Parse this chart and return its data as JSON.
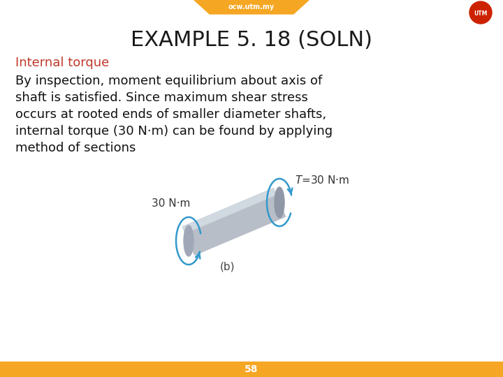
{
  "title": "EXAMPLE 5. 18 (SOLN)",
  "subtitle": "Internal torque",
  "body_lines": [
    "By inspection, moment equilibrium about axis of",
    "shaft is satisfied. Since maximum shear stress",
    "occurs at rooted ends of smaller diameter shafts,",
    "internal torque (30 N·m) can be found by applying",
    "method of sections"
  ],
  "label_left": "30 N·m",
  "label_right": "T=30 N·m",
  "caption": "(b)",
  "page_number": "58",
  "top_banner_color": "#F5A623",
  "top_banner_text": "ocw.utm.my",
  "bottom_bar_color": "#F5A623",
  "title_color": "#1a1a1a",
  "subtitle_color": "#C0392B",
  "body_color": "#111111",
  "background_color": "#FFFFFF",
  "shaft_body_color": "#B8BEC8",
  "shaft_top_color": "#D0D8E0",
  "shaft_end_color": "#9098A8",
  "shaft_face_color": "#A0A8B8",
  "arrow_color": "#3399CC",
  "label_color": "#333333",
  "caption_color": "#444444"
}
